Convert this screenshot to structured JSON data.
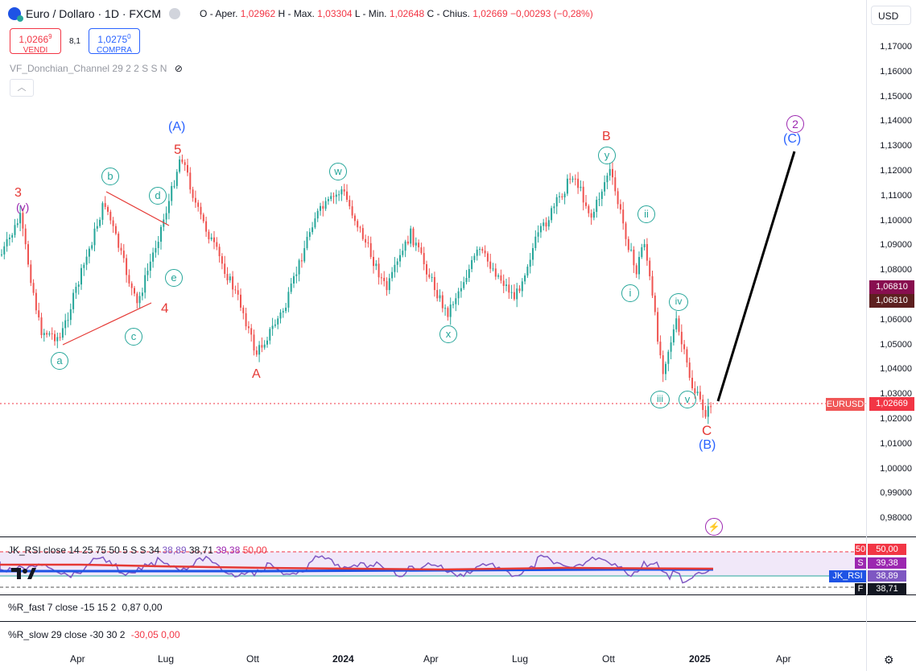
{
  "header": {
    "symbol_title": "Euro / Dollaro · 1D · FXCM",
    "ohlc": {
      "open_label": "O - Aper.",
      "open": "1,02962",
      "high_label": "H - Max.",
      "high": "1,03304",
      "low_label": "L - Min.",
      "low": "1,02648",
      "close_label": "C - Chius.",
      "close": "1,02669",
      "change": "−0,00293 (−0,28%)"
    },
    "sell": {
      "price": "1,0266",
      "sup": "9",
      "label": "VENDI"
    },
    "spread": "8,1",
    "buy": {
      "price": "1,0275",
      "sup": "0",
      "label": "COMPRA"
    },
    "indicator": "VF_Donchian_Channel 29 2 2 S S N",
    "currency": "USD"
  },
  "price_axis": {
    "ticks": [
      "1,17000",
      "1,16000",
      "1,15000",
      "1,14000",
      "1,13000",
      "1,12000",
      "1,11000",
      "1,10000",
      "1,09000",
      "1,08000",
      "1,07000",
      "1,06000",
      "1,05000",
      "1,04000",
      "1,03000",
      "1,02000",
      "1,01000",
      "1,00000",
      "0,99000",
      "0,98000"
    ],
    "tag_1": "1,06810",
    "tag_2": "1,06810",
    "symbol_tag": "EURUSD",
    "last_price": "1,02669",
    "colors": {
      "up": "#26a69a",
      "down": "#ef5350",
      "wave_red": "#e53935",
      "wave_green": "#26a69a",
      "wave_blue": "#2962ff",
      "wave_purple": "#9c27b0"
    }
  },
  "wave_labels": {
    "A_paren": "(A)",
    "B_paren": "(B)",
    "C_paren": "(C)",
    "five": "5",
    "three": "3",
    "four": "4",
    "v_paren": "(v)",
    "A": "A",
    "B": "B",
    "C": "C",
    "a": "a",
    "b": "b",
    "c": "c",
    "d": "d",
    "e": "e",
    "w": "w",
    "x": "x",
    "y": "y",
    "i": "i",
    "ii": "ii",
    "iii": "iii",
    "iv": "iv",
    "v": "v",
    "two": "2"
  },
  "rsi_pane": {
    "label": "JK_RSI",
    "params": "close 14 25 75 50 5 S S 34",
    "v1": "38,89",
    "v2": "38,71",
    "v3": "39,38",
    "v4": "50,00",
    "tag_50": "50",
    "tag_50_val": "50,00",
    "tag_s": "S",
    "tag_s_val": "39,38",
    "tag_name": "JK_RSI",
    "tag_name_val": "38,89",
    "tag_f": "F",
    "tag_f_val": "38,71"
  },
  "r_fast": {
    "label": "%R_fast",
    "params": "7 close -15 15 2",
    "v1": "0,87",
    "v2": "0,00"
  },
  "r_slow": {
    "label": "%R_slow",
    "params": "29 close -30 30 2",
    "v1": "-30,05",
    "v2": "0,00"
  },
  "time_axis": [
    "Apr",
    "Lug",
    "Ott",
    "2024",
    "Apr",
    "Lug",
    "Ott",
    "2025",
    "Apr"
  ]
}
